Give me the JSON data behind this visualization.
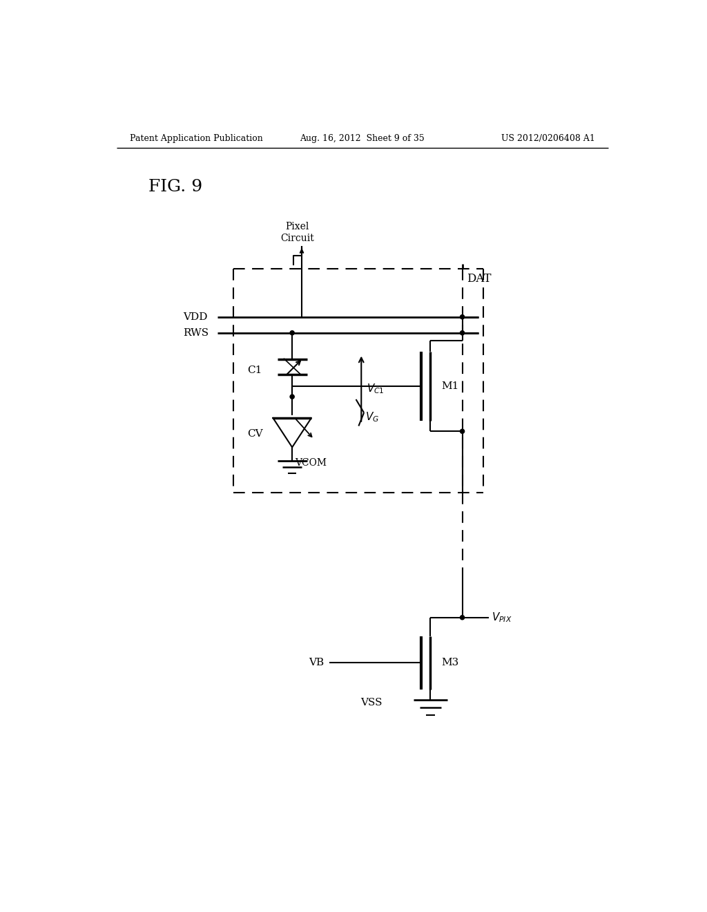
{
  "bg_color": "#ffffff",
  "line_color": "#000000",
  "header_left": "Patent Application Publication",
  "header_mid": "Aug. 16, 2012  Sheet 9 of 35",
  "header_right": "US 2012/0206408 A1",
  "fig_label": "FIG. 9"
}
